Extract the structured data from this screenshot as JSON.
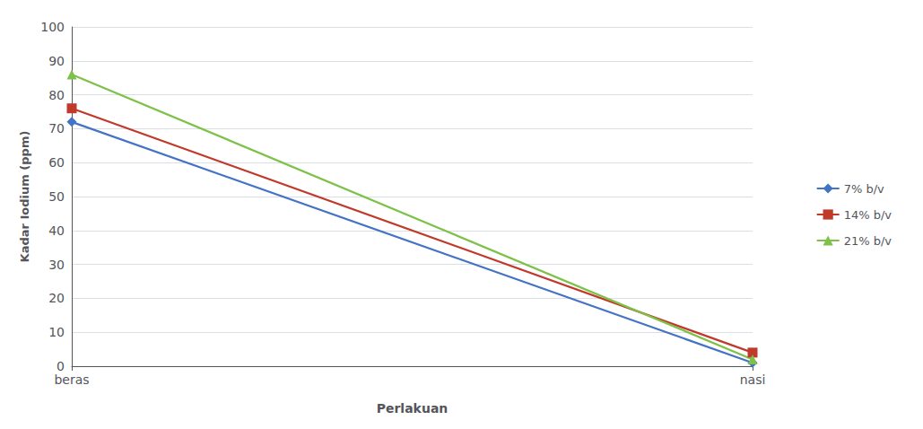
{
  "chart_data": {
    "type": "line",
    "xlabel": "Perlakuan",
    "ylabel": "Kadar Iodium (ppm)",
    "categories": [
      "beras",
      "nasi"
    ],
    "series": [
      {
        "name": "7% b/v",
        "color": "#4472C4",
        "marker": "diamond",
        "values": [
          72,
          1
        ]
      },
      {
        "name": "14% b/v",
        "color": "#C0392B",
        "marker": "square",
        "values": [
          76,
          4
        ]
      },
      {
        "name": "21% b/v",
        "color": "#7DC148",
        "marker": "triangle",
        "values": [
          86,
          2
        ]
      }
    ],
    "ylim": [
      0,
      100
    ],
    "yticks": [
      0,
      10,
      20,
      30,
      40,
      50,
      60,
      70,
      80,
      90,
      100
    ],
    "grid": true,
    "legend": "right"
  }
}
